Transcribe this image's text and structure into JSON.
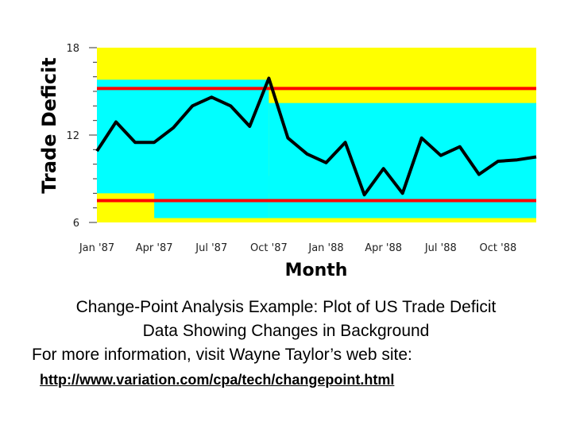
{
  "chart_data": {
    "type": "line",
    "xlabel": "Month",
    "ylabel": "Trade Deficit",
    "ylim": [
      6,
      18
    ],
    "yticks": [
      6,
      12,
      18
    ],
    "x_tick_labels": [
      "Jan '87",
      "Apr '87",
      "Jul '87",
      "Oct '87",
      "Jan '88",
      "Apr '88",
      "Jul '88",
      "Oct '88"
    ],
    "x_tick_index": [
      0,
      3,
      6,
      9,
      12,
      15,
      18,
      21
    ],
    "values": [
      10.9,
      12.9,
      11.5,
      11.5,
      12.5,
      14.0,
      14.6,
      14.0,
      12.6,
      15.9,
      11.8,
      10.7,
      10.1,
      11.5,
      7.9,
      9.7,
      8.0,
      11.8,
      10.6,
      11.2,
      9.3,
      10.2,
      10.3,
      10.5
    ],
    "control_limits": [
      15.2,
      7.5
    ],
    "background_segments": [
      {
        "from": 0,
        "to": 9,
        "band": [
          8.0,
          15.8
        ],
        "color": "#00ffff"
      },
      {
        "from": 3,
        "to": 9,
        "band": [
          6.3,
          9.2
        ],
        "color": "#00ffff"
      },
      {
        "from": 9,
        "to": 23,
        "band": [
          6.3,
          14.2
        ],
        "color": "#00ffff"
      }
    ],
    "colors": {
      "band": "#ffff00",
      "background_shift": "#00ffff",
      "limit_line": "#ff0000",
      "series": "#000000"
    }
  },
  "caption": {
    "line1": "Change-Point Analysis Example: Plot of US Trade Deficit",
    "line2": "Data Showing Changes in Background",
    "line3": "For more information, visit Wayne Taylor’s web site:",
    "link": "http://www.variation.com/cpa/tech/changepoint.html"
  }
}
